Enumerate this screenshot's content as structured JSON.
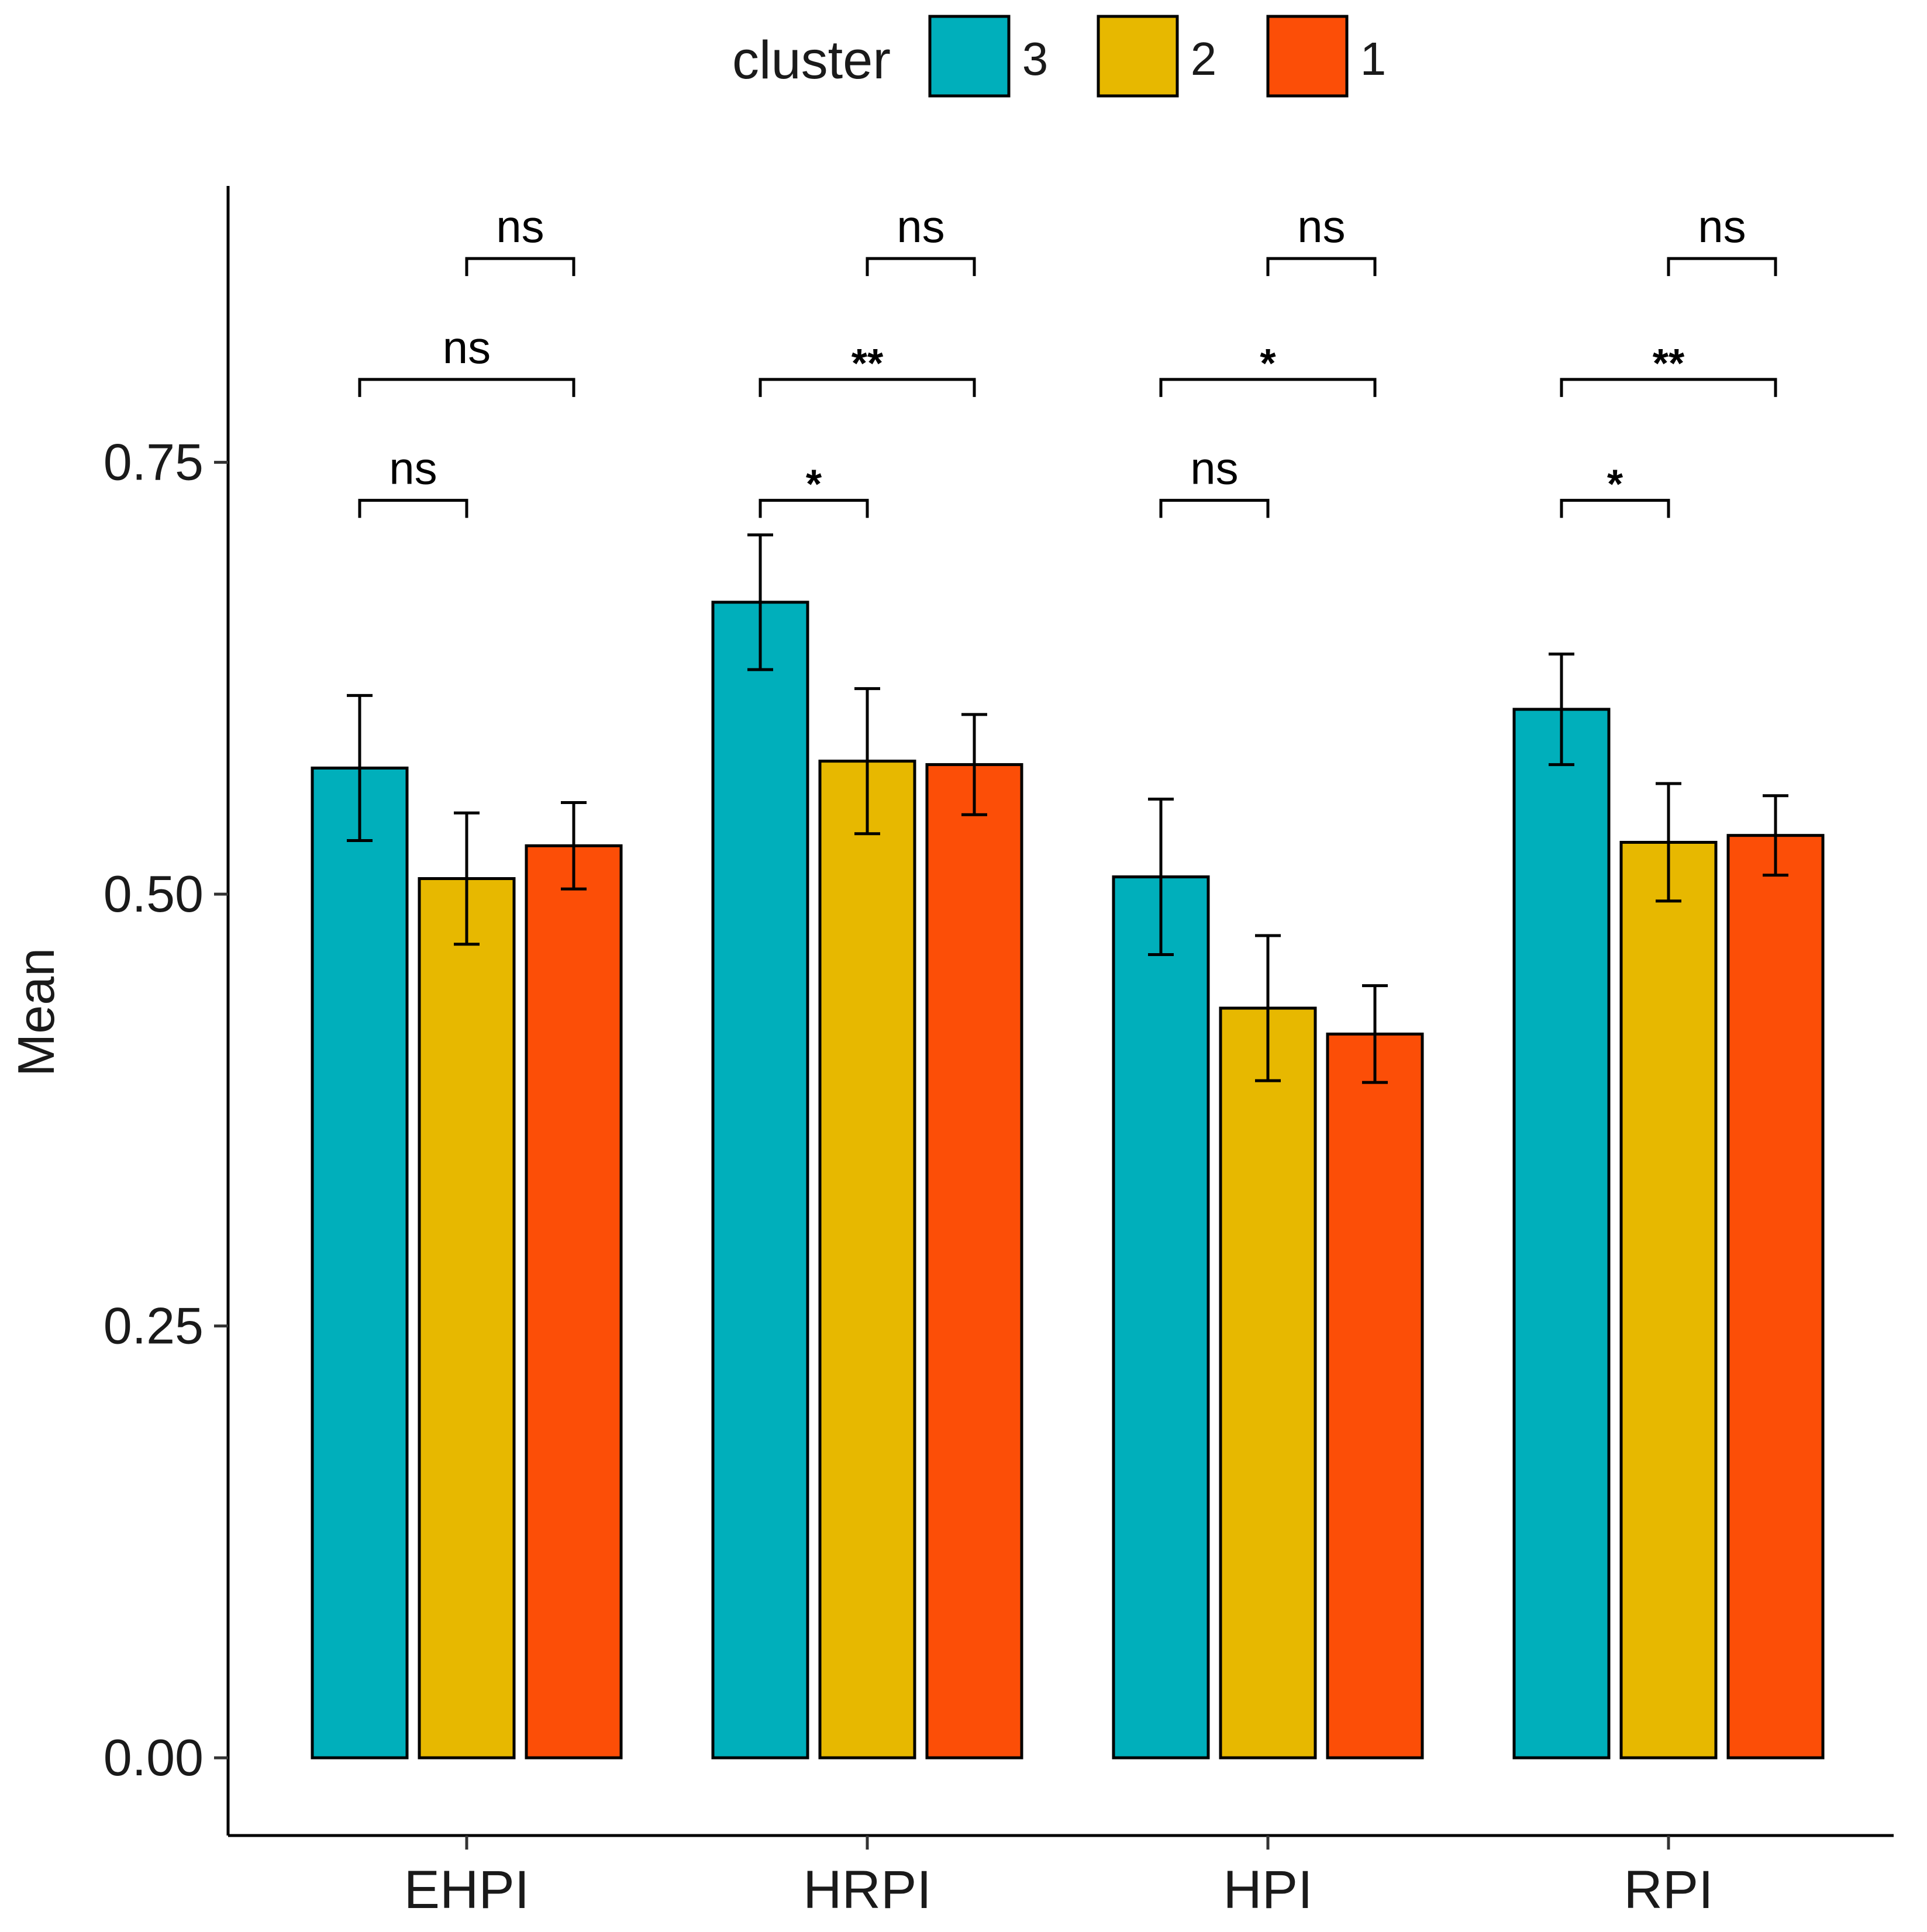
{
  "chart_data": {
    "type": "bar",
    "title": "",
    "xlabel": "",
    "ylabel": "Mean",
    "ylim": [
      -0.045,
      0.91
    ],
    "y_ticks": [
      0.0,
      0.25,
      0.5,
      0.75
    ],
    "y_tick_labels": [
      "0.00",
      "0.25",
      "0.50",
      "0.75"
    ],
    "grid": false,
    "legend": {
      "title": "cluster",
      "position": "top",
      "entries": [
        "3",
        "2",
        "1"
      ]
    },
    "categories": [
      "EHPI",
      "HRPI",
      "HPI",
      "RPI"
    ],
    "series": [
      {
        "name": "3",
        "color": "#00AFBB",
        "values": [
          0.573,
          0.669,
          0.51,
          0.607
        ],
        "errors": [
          0.042,
          0.039,
          0.045,
          0.032
        ]
      },
      {
        "name": "2",
        "color": "#E7B800",
        "values": [
          0.509,
          0.577,
          0.434,
          0.53
        ],
        "errors": [
          0.038,
          0.042,
          0.042,
          0.034
        ]
      },
      {
        "name": "1",
        "color": "#FC4E07",
        "values": [
          0.528,
          0.575,
          0.419,
          0.534
        ],
        "errors": [
          0.025,
          0.029,
          0.028,
          0.023
        ]
      }
    ],
    "comparisons": [
      {
        "category": "EHPI",
        "from": "3",
        "to": "2",
        "label": "ns",
        "y": 0.728
      },
      {
        "category": "EHPI",
        "from": "3",
        "to": "1",
        "label": "ns",
        "y": 0.798
      },
      {
        "category": "EHPI",
        "from": "2",
        "to": "1",
        "label": "ns",
        "y": 0.868
      },
      {
        "category": "HRPI",
        "from": "3",
        "to": "2",
        "label": "*",
        "y": 0.728
      },
      {
        "category": "HRPI",
        "from": "3",
        "to": "1",
        "label": "**",
        "y": 0.798
      },
      {
        "category": "HRPI",
        "from": "2",
        "to": "1",
        "label": "ns",
        "y": 0.868
      },
      {
        "category": "HPI",
        "from": "3",
        "to": "2",
        "label": "ns",
        "y": 0.728
      },
      {
        "category": "HPI",
        "from": "3",
        "to": "1",
        "label": "*",
        "y": 0.798
      },
      {
        "category": "HPI",
        "from": "2",
        "to": "1",
        "label": "ns",
        "y": 0.868
      },
      {
        "category": "RPI",
        "from": "3",
        "to": "2",
        "label": "*",
        "y": 0.728
      },
      {
        "category": "RPI",
        "from": "3",
        "to": "1",
        "label": "**",
        "y": 0.798
      },
      {
        "category": "RPI",
        "from": "2",
        "to": "1",
        "label": "ns",
        "y": 0.868
      }
    ]
  }
}
